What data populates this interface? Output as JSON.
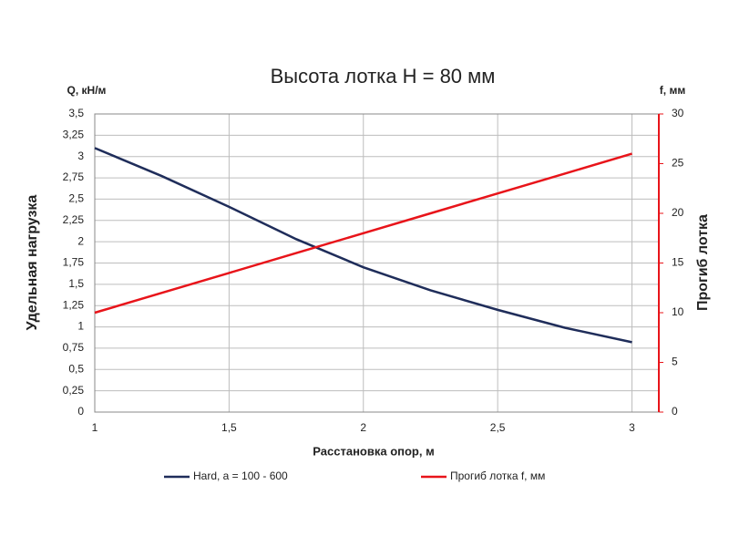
{
  "chart_data": {
    "type": "line",
    "title": "Высота лотка H = 80 мм",
    "x_label": "Расстановка опор, м",
    "y_label": "Удельная нагрузка",
    "y_unit": "Q, кН/м",
    "y2_label": "Прогиб лотка",
    "y2_unit": "f, мм",
    "x": [
      1,
      1.25,
      1.5,
      1.75,
      2,
      2.25,
      2.5,
      2.75,
      3
    ],
    "series": [
      {
        "name": "Hard,  a = 100 - 600",
        "color": "#1f2d5a",
        "values": [
          3.1,
          2.77,
          2.41,
          2.03,
          1.7,
          1.43,
          1.2,
          0.99,
          0.82
        ]
      },
      {
        "name": "Прогиб лотка f, мм",
        "color": "#e8141a",
        "axis": "y2",
        "values": [
          10,
          12,
          14,
          16,
          18,
          20,
          22,
          24,
          26
        ]
      }
    ],
    "xlim": [
      1,
      3.1
    ],
    "xticks": [
      1,
      {
        "value": 1.5,
        "label": "1,5"
      },
      2,
      {
        "value": 2.5,
        "label": "2,5"
      },
      3
    ],
    "ylim": [
      0,
      3.5
    ],
    "yticks": [
      0,
      {
        "value": 0.25,
        "label": "0,25"
      },
      {
        "value": 0.5,
        "label": "0,5"
      },
      {
        "value": 0.75,
        "label": "0,75"
      },
      1,
      {
        "value": 1.25,
        "label": "1,25"
      },
      {
        "value": 1.5,
        "label": "1,5"
      },
      {
        "value": 1.75,
        "label": "1,75"
      },
      2,
      {
        "value": 2.25,
        "label": "2,25"
      },
      {
        "value": 2.5,
        "label": "2,5"
      },
      {
        "value": 2.75,
        "label": "2,75"
      },
      3,
      {
        "value": 3.25,
        "label": "3,25"
      },
      {
        "value": 3.5,
        "label": "3,5"
      }
    ],
    "y2lim": [
      0,
      30
    ],
    "y2ticks": [
      0,
      5,
      10,
      15,
      20,
      25,
      30
    ],
    "grid": true,
    "legend": "bottom"
  }
}
